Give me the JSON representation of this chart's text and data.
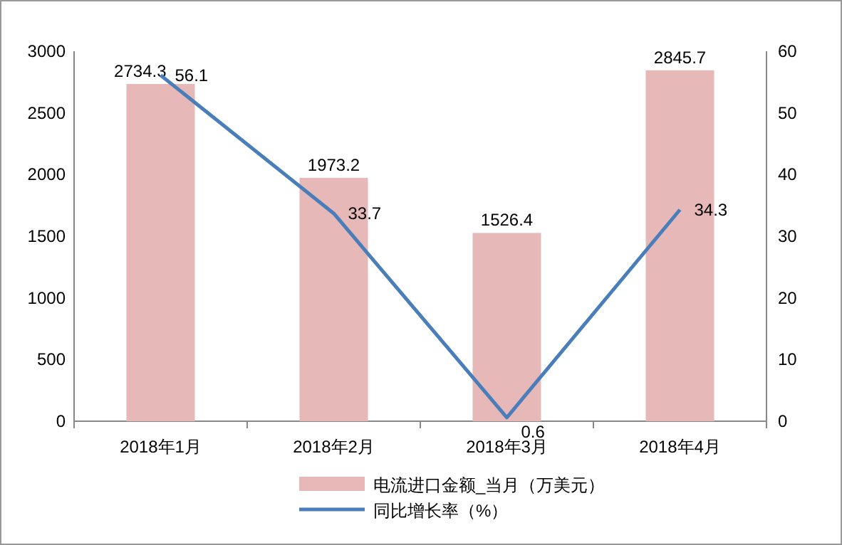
{
  "chart_data": {
    "type": "bar",
    "categories": [
      "2018年1月",
      "2018年2月",
      "2018年3月",
      "2018年4月"
    ],
    "series": [
      {
        "name": "电流进口金额_当月（万美元）",
        "color": "#e6b9b8",
        "values": [
          2734.3,
          1973.2,
          1526.4,
          2845.7
        ]
      },
      {
        "name": "同比增长率（%）",
        "type": "line",
        "axis": "y2",
        "color": "#4a7ebb",
        "values": [
          56.1,
          33.7,
          0.6,
          34.3
        ]
      }
    ],
    "ylim": [
      0,
      3000
    ],
    "yticks": [
      0,
      500,
      1000,
      1500,
      2000,
      2500,
      3000
    ],
    "y2lim": [
      0,
      60
    ],
    "y2ticks": [
      0,
      10,
      20,
      30,
      40,
      50,
      60
    ],
    "data_labels": true,
    "legend": "bottom",
    "grid": false
  }
}
